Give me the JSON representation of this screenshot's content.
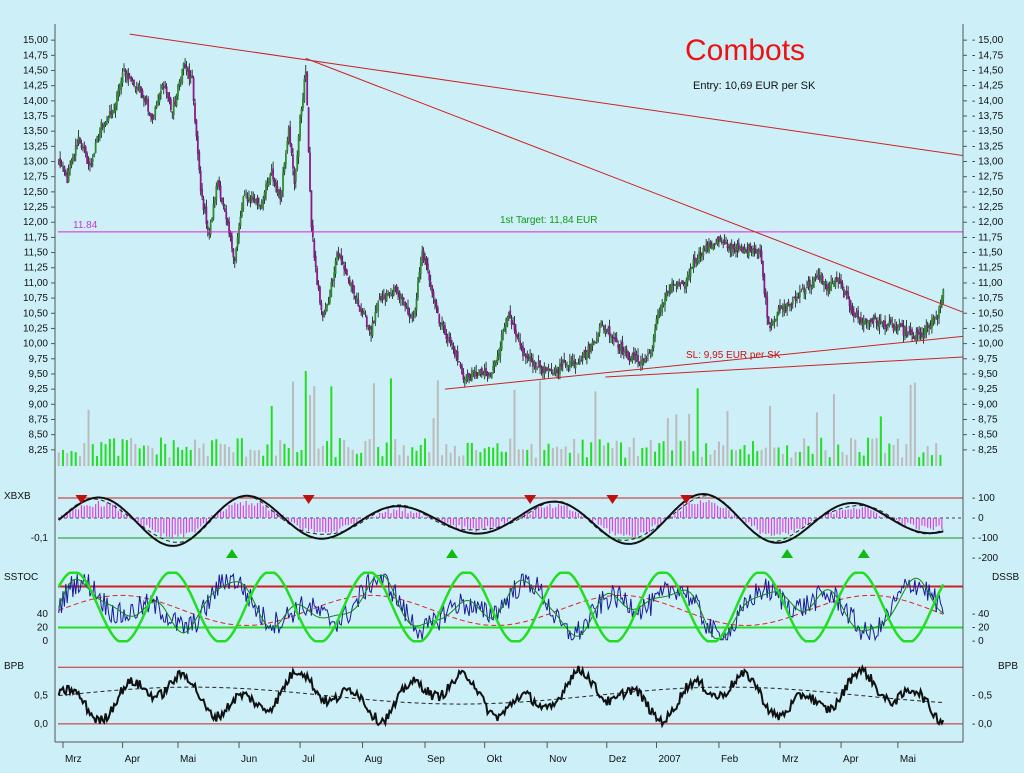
{
  "title": "Combots",
  "subtitle": "Entry: 10,69 EUR per SK",
  "colors": {
    "background": "#cdf0f8",
    "bull_candle": "#2e8b2e",
    "bear_candle": "#8b1a8b",
    "trendline": "#cc2222",
    "target_line": "#dd22dd",
    "volume_up": "#22dd22",
    "volume_down": "#bbbbbb",
    "xbxb_histogram": "#dd44dd",
    "signal_up": "#11bb11",
    "signal_down": "#bb1111"
  },
  "chart_data": [
    {
      "type": "candlestick",
      "panel": "price",
      "title": "Combots",
      "subtitle": "Entry: 10,69 EUR per SK",
      "ylim": [
        8.0,
        15.2
      ],
      "y_ticks": [
        "15,00",
        "14,75",
        "14,50",
        "14,25",
        "14,00",
        "13,75",
        "13,50",
        "13,25",
        "13,00",
        "12,75",
        "12,50",
        "12,25",
        "12,00",
        "11,75",
        "11,50",
        "11,25",
        "11,00",
        "10,75",
        "10,50",
        "10,25",
        "10,00",
        "9,75",
        "9,50",
        "9,25",
        "9,00",
        "8,75",
        "8,50",
        "8,25"
      ],
      "x_month_labels": [
        "Mrz",
        "Apr",
        "Mai",
        "Jun",
        "Jul",
        "Aug",
        "Sep",
        "Okt",
        "Nov",
        "Dez",
        "2007",
        "Feb",
        "Mrz",
        "Apr",
        "Mai"
      ],
      "anchors": [
        [
          0,
          13.0
        ],
        [
          6,
          12.7
        ],
        [
          14,
          13.4
        ],
        [
          22,
          12.9
        ],
        [
          30,
          13.6
        ],
        [
          38,
          13.8
        ],
        [
          46,
          14.5
        ],
        [
          52,
          14.3
        ],
        [
          60,
          14.1
        ],
        [
          66,
          13.7
        ],
        [
          74,
          14.3
        ],
        [
          80,
          13.8
        ],
        [
          88,
          14.6
        ],
        [
          94,
          14.3
        ],
        [
          100,
          12.5
        ],
        [
          106,
          11.8
        ],
        [
          112,
          12.7
        ],
        [
          118,
          12.0
        ],
        [
          124,
          11.4
        ],
        [
          130,
          12.4
        ],
        [
          136,
          12.4
        ],
        [
          142,
          12.3
        ],
        [
          150,
          12.8
        ],
        [
          156,
          12.4
        ],
        [
          162,
          13.6
        ],
        [
          166,
          12.6
        ],
        [
          170,
          13.7
        ],
        [
          174,
          14.5
        ],
        [
          178,
          11.9
        ],
        [
          182,
          11.0
        ],
        [
          186,
          10.4
        ],
        [
          190,
          10.7
        ],
        [
          196,
          11.5
        ],
        [
          202,
          11.2
        ],
        [
          208,
          10.8
        ],
        [
          214,
          10.5
        ],
        [
          220,
          10.2
        ],
        [
          226,
          10.7
        ],
        [
          232,
          10.8
        ],
        [
          238,
          10.9
        ],
        [
          244,
          10.6
        ],
        [
          250,
          10.4
        ],
        [
          256,
          11.5
        ],
        [
          262,
          11.0
        ],
        [
          268,
          10.4
        ],
        [
          274,
          10.1
        ],
        [
          280,
          9.8
        ],
        [
          286,
          9.4
        ],
        [
          292,
          9.5
        ],
        [
          298,
          9.5
        ],
        [
          304,
          9.45
        ],
        [
          310,
          9.9
        ],
        [
          316,
          10.5
        ],
        [
          322,
          10.1
        ],
        [
          328,
          9.8
        ],
        [
          334,
          9.7
        ],
        [
          340,
          9.6
        ],
        [
          346,
          9.5
        ],
        [
          352,
          9.6
        ],
        [
          358,
          9.7
        ],
        [
          364,
          9.7
        ],
        [
          370,
          9.8
        ],
        [
          376,
          10.0
        ],
        [
          382,
          10.3
        ],
        [
          388,
          10.2
        ],
        [
          394,
          10.0
        ],
        [
          400,
          9.8
        ],
        [
          406,
          9.75
        ],
        [
          412,
          9.7
        ],
        [
          418,
          9.9
        ],
        [
          422,
          10.5
        ],
        [
          428,
          10.8
        ],
        [
          434,
          11.0
        ],
        [
          440,
          10.9
        ],
        [
          446,
          11.3
        ],
        [
          452,
          11.5
        ],
        [
          458,
          11.6
        ],
        [
          464,
          11.7
        ],
        [
          470,
          11.6
        ],
        [
          476,
          11.6
        ],
        [
          482,
          11.5
        ],
        [
          488,
          11.6
        ],
        [
          494,
          11.5
        ],
        [
          500,
          10.3
        ],
        [
          506,
          10.5
        ],
        [
          512,
          10.6
        ],
        [
          518,
          10.7
        ],
        [
          524,
          10.9
        ],
        [
          530,
          11.0
        ],
        [
          536,
          11.1
        ],
        [
          542,
          10.9
        ],
        [
          548,
          11.05
        ],
        [
          554,
          10.8
        ],
        [
          560,
          10.5
        ],
        [
          566,
          10.35
        ],
        [
          572,
          10.4
        ],
        [
          578,
          10.35
        ],
        [
          584,
          10.3
        ],
        [
          590,
          10.25
        ],
        [
          596,
          10.2
        ],
        [
          602,
          10.1
        ],
        [
          608,
          10.15
        ],
        [
          614,
          10.3
        ],
        [
          620,
          10.5
        ],
        [
          623,
          10.9
        ]
      ],
      "candle_count": 624,
      "horizontal_lines": [
        {
          "value": 11.84,
          "label": "11.84",
          "note": "1st Target: 11,84 EUR"
        }
      ],
      "trendlines": [
        {
          "from": [
            50,
            15.1
          ],
          "to": [
            624,
            13.1
          ]
        },
        {
          "from": [
            174,
            14.7
          ],
          "to": [
            624,
            10.52
          ]
        },
        {
          "from": [
            272,
            9.25
          ],
          "to": [
            624,
            10.12
          ]
        },
        {
          "from": [
            385,
            9.45
          ],
          "to": [
            624,
            9.78
          ]
        }
      ],
      "annotations": [
        {
          "text": "SL: 9,95 EUR per SK",
          "x": 478,
          "y": 9.95
        }
      ]
    },
    {
      "type": "bar",
      "panel": "volume",
      "note": "Volume bars (no axis scale printed)",
      "seed": 7
    },
    {
      "type": "line",
      "panel": "oscillator",
      "title": "XBXB",
      "ylim": [
        -220,
        140
      ],
      "y_ticks_right": [
        "100",
        "0",
        "-100",
        "-200"
      ],
      "y_ticks_left": [
        "-0,1"
      ],
      "levels": [
        100,
        -100
      ],
      "signals_down_at": [
        16,
        176,
        332,
        390,
        442
      ],
      "signals_up_at": [
        122,
        277,
        513,
        567
      ]
    },
    {
      "type": "line",
      "panel": "stochastic",
      "title_left": "SSTOC",
      "title_right": "DSSB",
      "ylim": [
        -10,
        110
      ],
      "y_ticks_left": [
        "40",
        "20",
        "0"
      ],
      "y_ticks_right": [
        "40",
        "20",
        "0"
      ],
      "levels": [
        80,
        20
      ]
    },
    {
      "type": "line",
      "panel": "bpb",
      "title_left": "BPB",
      "title_right": "BPB",
      "ylim": [
        -0.25,
        1.2
      ],
      "y_ticks_left": [
        "0,5",
        "0,0"
      ],
      "y_ticks_right": [
        "0,5",
        "0,0"
      ],
      "levels": [
        1.0,
        0.0
      ]
    }
  ]
}
